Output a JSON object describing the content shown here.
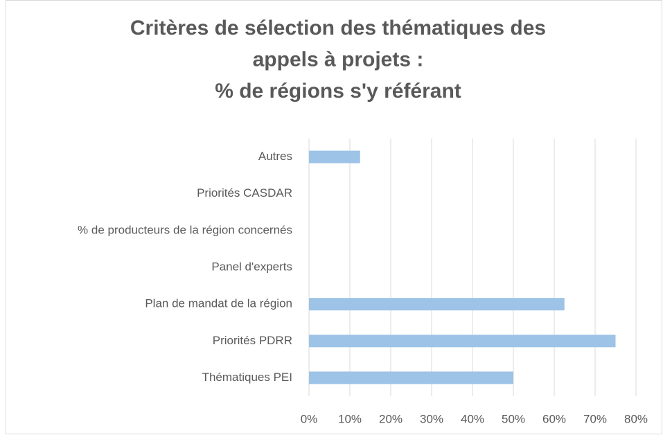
{
  "chart_data": {
    "type": "bar",
    "orientation": "horizontal",
    "title": [
      "Critères de sélection des thématiques des",
      "appels à projets :",
      "% de régions s'y référant"
    ],
    "categories": [
      "Autres",
      "Priorités CASDAR",
      "% de producteurs de la région concernés",
      "Panel d'experts",
      "Plan de mandat de la région",
      "Priorités PDRR",
      "Thématiques PEI"
    ],
    "values": [
      12.5,
      0,
      0,
      0,
      62.5,
      75,
      50
    ],
    "color": "#9dc3e6",
    "xlim": [
      0,
      80
    ],
    "xticks": [
      {
        "value": 0,
        "label": "0%"
      },
      {
        "value": 10,
        "label": "10%"
      },
      {
        "value": 20,
        "label": "20%"
      },
      {
        "value": 30,
        "label": "30%"
      },
      {
        "value": 40,
        "label": "40%"
      },
      {
        "value": 50,
        "label": "50%"
      },
      {
        "value": 60,
        "label": "60%"
      },
      {
        "value": 70,
        "label": "70%"
      },
      {
        "value": 80,
        "label": "80%"
      }
    ],
    "grid": true
  }
}
